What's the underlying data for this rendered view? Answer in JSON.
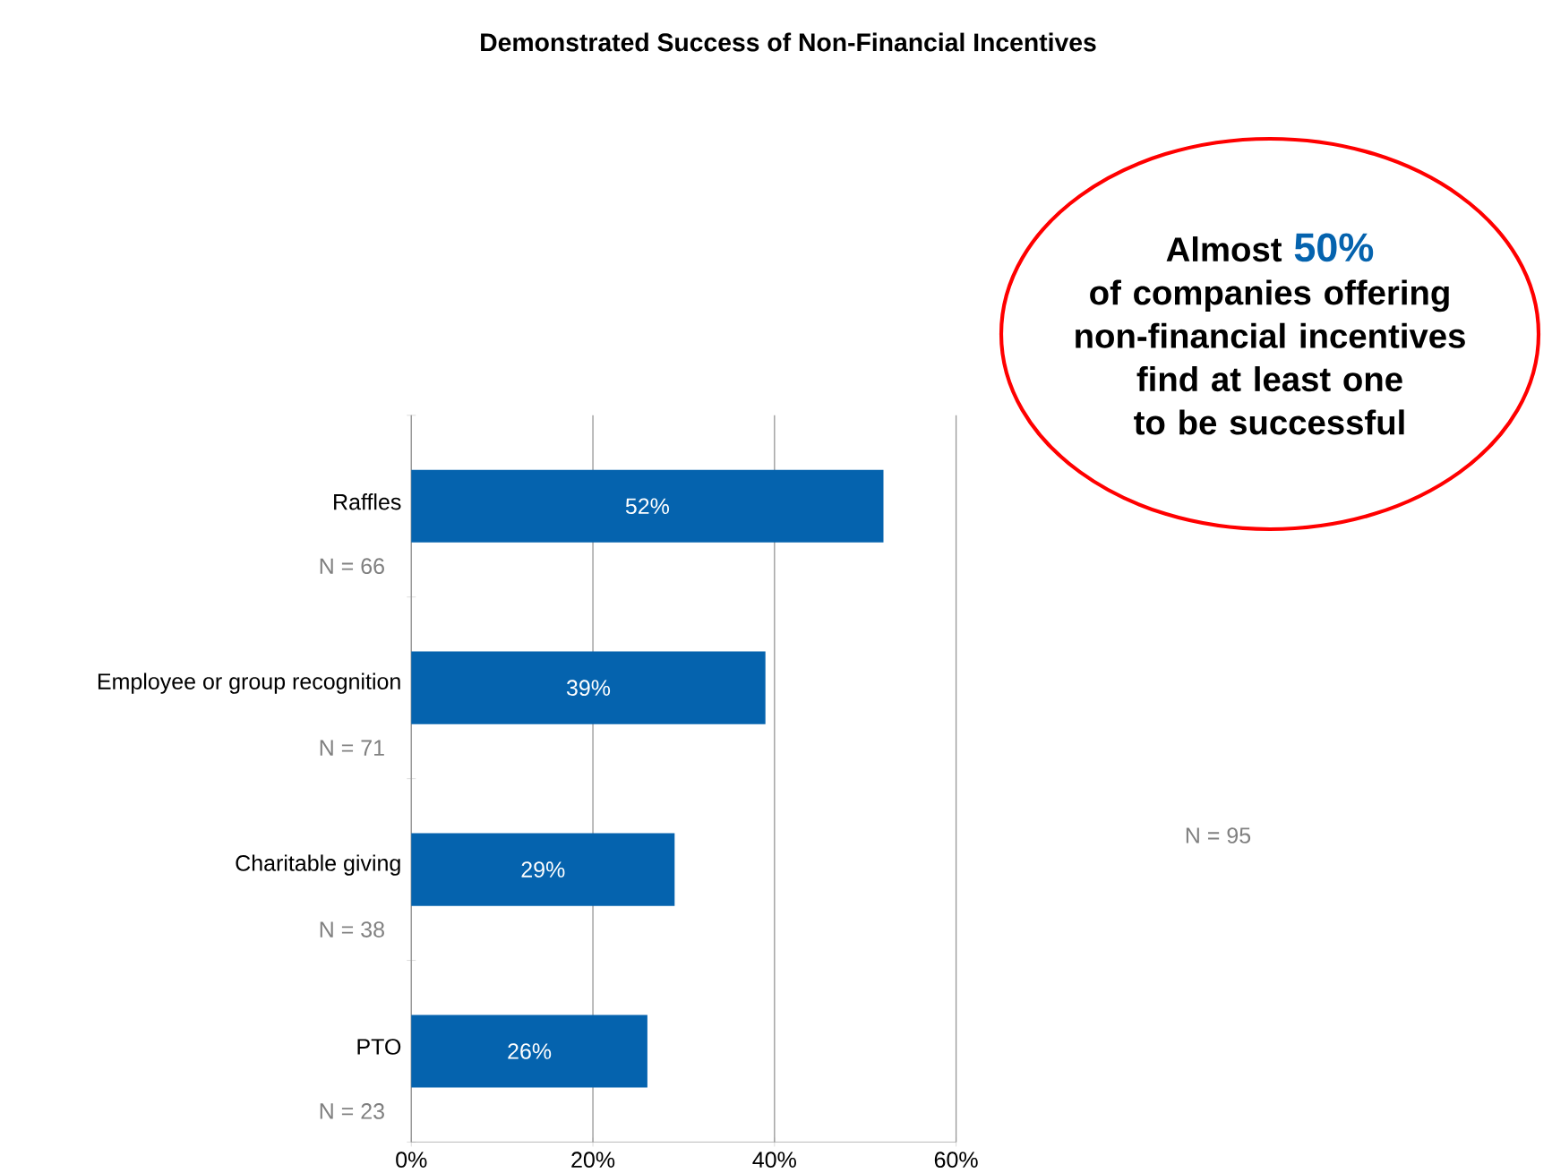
{
  "chart_data": {
    "type": "bar",
    "orientation": "horizontal",
    "title": "Demonstrated Success of Non-Financial Incentives",
    "categories": [
      "Raffles",
      "Employee or group recognition",
      "Charitable giving",
      "PTO"
    ],
    "values": [
      52,
      39,
      29,
      26
    ],
    "color": "#0563ae",
    "value_labels": [
      "52%",
      "39%",
      "29%",
      "26%"
    ],
    "xlim": [
      0,
      60
    ],
    "xticks": [
      {
        "value": 0,
        "label": "0%"
      },
      {
        "value": 20,
        "label": "20%"
      },
      {
        "value": 40,
        "label": "40%"
      },
      {
        "value": 60,
        "label": "60%"
      }
    ],
    "grid": "x",
    "annotations": [
      "N = 66",
      "N = 71",
      "N = 38",
      "N = 23",
      "N = 95",
      "Almost",
      "50%",
      "of companies offering non-financial incentives find at least one to be successful"
    ]
  }
}
